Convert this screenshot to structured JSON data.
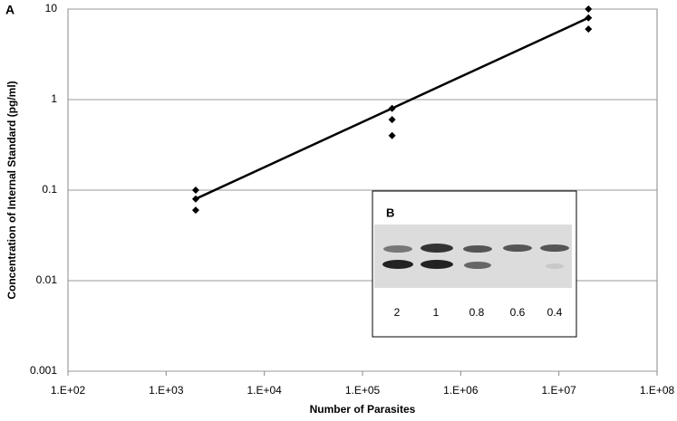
{
  "chart_data": {
    "type": "scatter",
    "panel_label": "A",
    "x_label": "Number of Parasites",
    "y_label": "Concentration of Internal Standard (pg/ml)",
    "xscale": "log",
    "yscale": "log",
    "xlim": [
      100,
      100000000
    ],
    "ylim": [
      0.001,
      10
    ],
    "xticks": [
      {
        "value": 100,
        "label": "1.E+02"
      },
      {
        "value": 1000,
        "label": "1.E+03"
      },
      {
        "value": 10000,
        "label": "1.E+04"
      },
      {
        "value": 100000,
        "label": "1.E+05"
      },
      {
        "value": 1000000,
        "label": "1.E+06"
      },
      {
        "value": 10000000,
        "label": "1.E+07"
      },
      {
        "value": 100000000,
        "label": "1.E+08"
      }
    ],
    "yticks": [
      0.001,
      0.01,
      0.1,
      1,
      10
    ],
    "grid": true,
    "series": [
      {
        "style": "markers",
        "color": "#000000",
        "x": [
          2000,
          2000,
          2000,
          200000,
          200000,
          200000,
          20000000,
          20000000,
          20000000
        ],
        "values": [
          0.1,
          0.08,
          0.06,
          0.8,
          0.6,
          0.4,
          10,
          8,
          6
        ]
      },
      {
        "style": "line",
        "color": "#000000",
        "x": [
          2000,
          20000000
        ],
        "values": [
          0.08,
          8
        ]
      }
    ],
    "inset": {
      "label": "B",
      "lanes": [
        "2",
        "1",
        "0.8",
        "0.6",
        "0.4"
      ]
    }
  }
}
